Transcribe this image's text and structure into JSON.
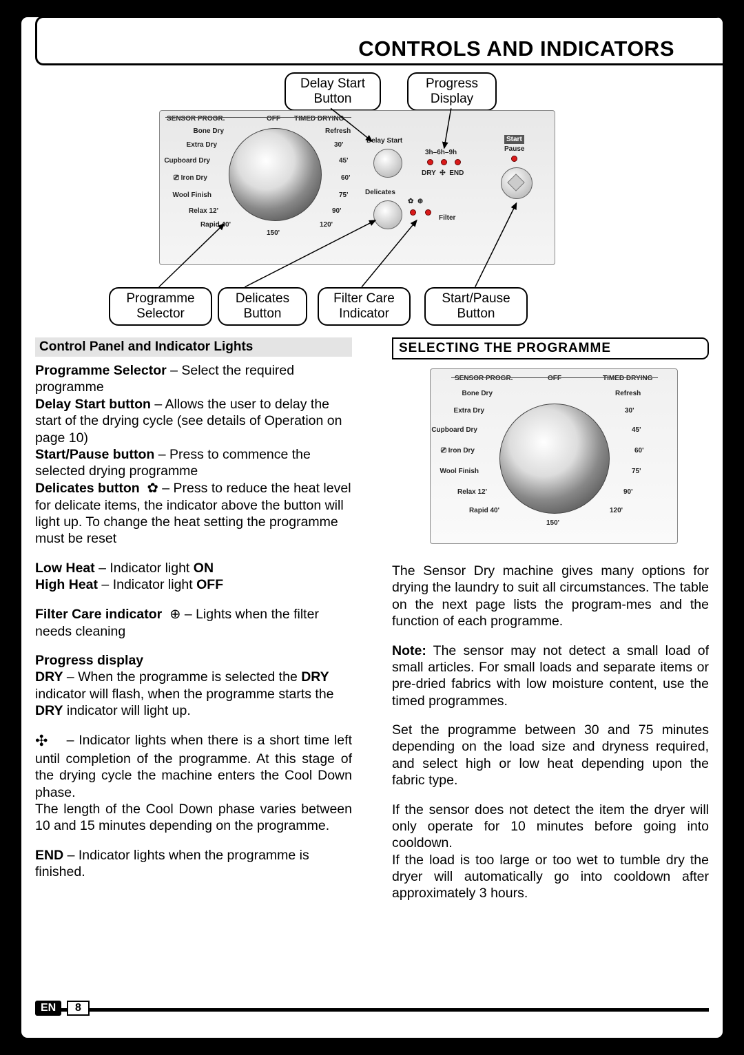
{
  "title": "CONTROLS AND INDICATORS",
  "callouts": {
    "delay_start": "Delay Start\nButton",
    "progress": "Progress\nDisplay",
    "programme": "Programme\nSelector",
    "delicates": "Delicates\nButton",
    "filter": "Filter Care\nIndicator",
    "startpause": "Start/Pause\nButton"
  },
  "panel": {
    "top_left": "SENSOR PROGR.",
    "top_mid": "OFF",
    "top_right": "TIMED DRYING",
    "left_options": [
      "Bone Dry",
      "Extra Dry",
      "Cupboard Dry",
      "Iron Dry",
      "Wool Finish",
      "Relax 12'",
      "Rapid 40'"
    ],
    "right_options": [
      "Refresh",
      "30'",
      "45'",
      "60'",
      "75'",
      "90'",
      "120'"
    ],
    "bottom": "150'",
    "delay_label": "Delay Start",
    "delay_times": "3h–6h–9h",
    "dry": "DRY",
    "end": "END",
    "delicates": "Delicates",
    "filter": "Filter",
    "start": "Start",
    "pause": "Pause"
  },
  "left_section_title": "Control Panel and Indicator Lights",
  "right_section_title": "SELECTING THE  PROGRAMME",
  "left_col": {
    "p1_b": "Programme Selector",
    "p1": " – Select the required programme",
    "p2_b": "Delay Start button",
    "p2": "   – Allows the user to delay the start of the drying cycle (see details of Operation on page 10)",
    "p3_b": "Start/Pause button",
    "p3": "  – Press to commence the selected drying programme",
    "p4_b": "Delicates button",
    "p4": "    – Press to reduce the heat level for delicate items, the indicator above the button will light up. To change the heat setting the programme must be reset",
    "p5a_b": "Low Heat",
    "p5a": " – Indicator light  ",
    "p5a_on": "ON",
    "p5b_b": "High Heat",
    "p5b": " – Indicator light  ",
    "p5b_off": "OFF",
    "p6_b": "Filter Care indicator",
    "p6": "  – Lights when the filter needs cleaning",
    "h7": "Progress display",
    "p8_b": "DRY",
    "p8": "   – When the programme is selected the ",
    "p8_b2": "DRY",
    "p8_2": "  indicator will flash, when the programme starts  the ",
    "p8_b3": "DRY",
    "p8_3": "  indicator will light up.",
    "p9": "   – Indicator lights when there is a short time left until completion of the programme. At this stage of the drying cycle the machine enters the Cool Down phase.",
    "p10": "The length of the Cool Down phase varies between 10 and 15 minutes depending on the programme.",
    "p11_b": "END",
    "p11": "    – Indicator lights when the programme is finished."
  },
  "right_col": {
    "p1": "The Sensor Dry machine gives many options for drying the laundry to suit all circumstances. The table on the next page lists the program-mes and the function of each programme.",
    "p2_b": "Note:",
    "p2": " The sensor may not detect a small load of small articles. For small loads and separate items or pre-dried fabrics with low moisture content, use the timed programmes.",
    "p3": "Set the programme between 30 and 75 minutes depending on the load size and dryness required, and select high or low heat depending upon the fabric type.",
    "p4": "If the sensor does not detect the item the dryer will only operate for 10 minutes before going into cooldown.",
    "p5": "If the load is too large or too wet to tumble dry the dryer will automatically go into cooldown after approximately 3 hours."
  },
  "footer": {
    "lang": "EN",
    "page": "8"
  },
  "colors": {
    "led_red": "#d91a1a"
  }
}
